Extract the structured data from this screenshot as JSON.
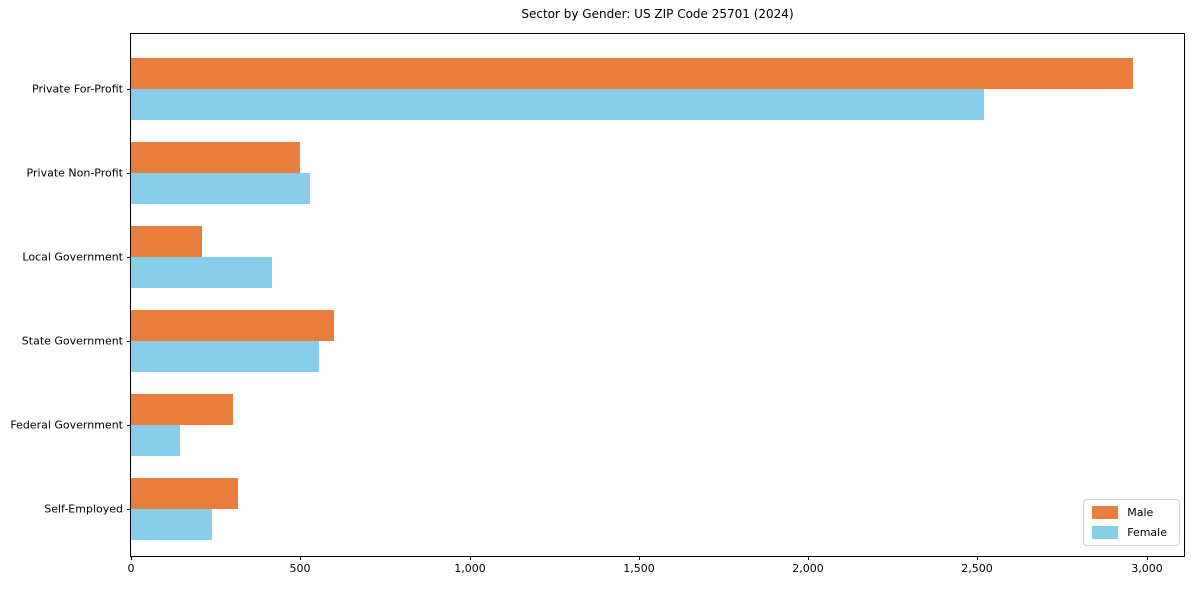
{
  "title": "Sector by Gender: US ZIP Code 25701 (2024)",
  "colors": {
    "male": "#e87d3c",
    "female": "#87ceeb",
    "spine": "#000000",
    "legend_border": "#d2d2d2",
    "background": "#ffffff"
  },
  "chart_data": {
    "type": "bar",
    "orientation": "horizontal",
    "title": "Sector by Gender: US ZIP Code 25701 (2024)",
    "xlabel": "",
    "ylabel": "",
    "categories": [
      "Private For-Profit",
      "Private Non-Profit",
      "Local Government",
      "State Government",
      "Federal Government",
      "Self-Employed"
    ],
    "series": [
      {
        "name": "Male",
        "color": "#e87d3c",
        "values": [
          2960,
          500,
          210,
          600,
          300,
          315
        ]
      },
      {
        "name": "Female",
        "color": "#87ceeb",
        "values": [
          2520,
          530,
          415,
          555,
          145,
          240
        ]
      }
    ],
    "xlim": [
      0,
      3110
    ],
    "xticks": [
      0,
      500,
      1000,
      1500,
      2000,
      2500,
      3000
    ],
    "xtick_labels": [
      "0",
      "500",
      "1,000",
      "1,500",
      "2,000",
      "2,500",
      "3,000"
    ],
    "grid": false,
    "legend_position": "lower right"
  }
}
